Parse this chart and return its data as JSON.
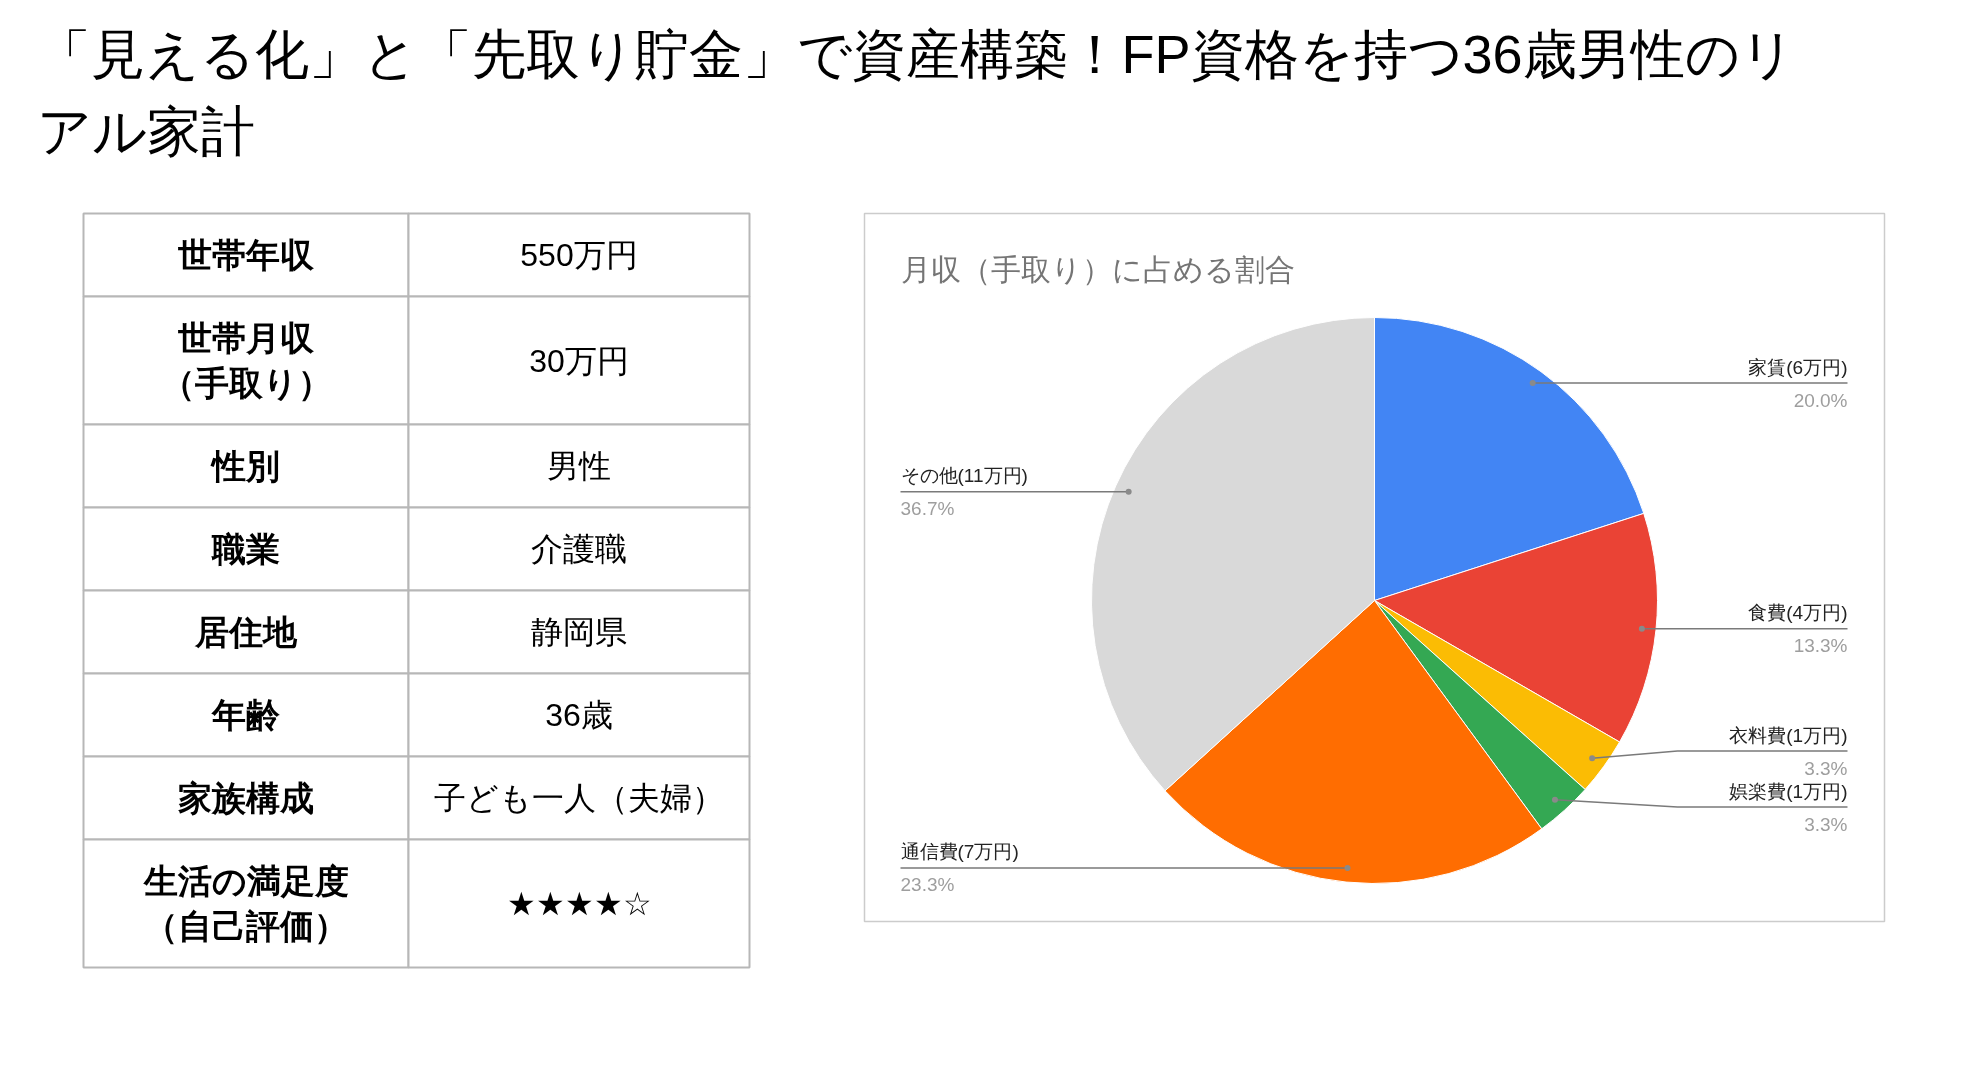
{
  "chart_data": [
    {
      "type": "other",
      "title": "「見える化」と「先取り貯金」で資産構築！FP資格を持つ36歳男性のリアル家計",
      "categories": [
        "世帯年収",
        "世帯月収（手取り）",
        "性別",
        "職業",
        "居住地",
        "年齢",
        "家族構成",
        "生活の満足度（自己評価）"
      ],
      "annotations": [
        "550万円",
        "30万円",
        "男性",
        "介護職",
        "静岡県",
        "36歳",
        "子ども一人（夫婦）",
        "★★★★☆"
      ]
    },
    {
      "type": "pie",
      "title": "月収（手取り）に占める割合",
      "categories": [
        "家賃(6万円)",
        "食費(4万円)",
        "衣料費(1万円)",
        "娯楽費(1万円)",
        "通信費(7万円)",
        "その他(11万円)"
      ],
      "values": [
        20.0,
        13.3,
        3.3,
        3.3,
        23.3,
        36.7
      ],
      "colors": [
        "#4285f4",
        "#ea4335",
        "#fbbc04",
        "#34a853",
        "#ff6d01",
        "#d9d9d9"
      ],
      "value_labels": [
        "20.0%",
        "13.3%",
        "3.3%",
        "3.3%",
        "23.3%",
        "36.7%"
      ]
    }
  ]
}
